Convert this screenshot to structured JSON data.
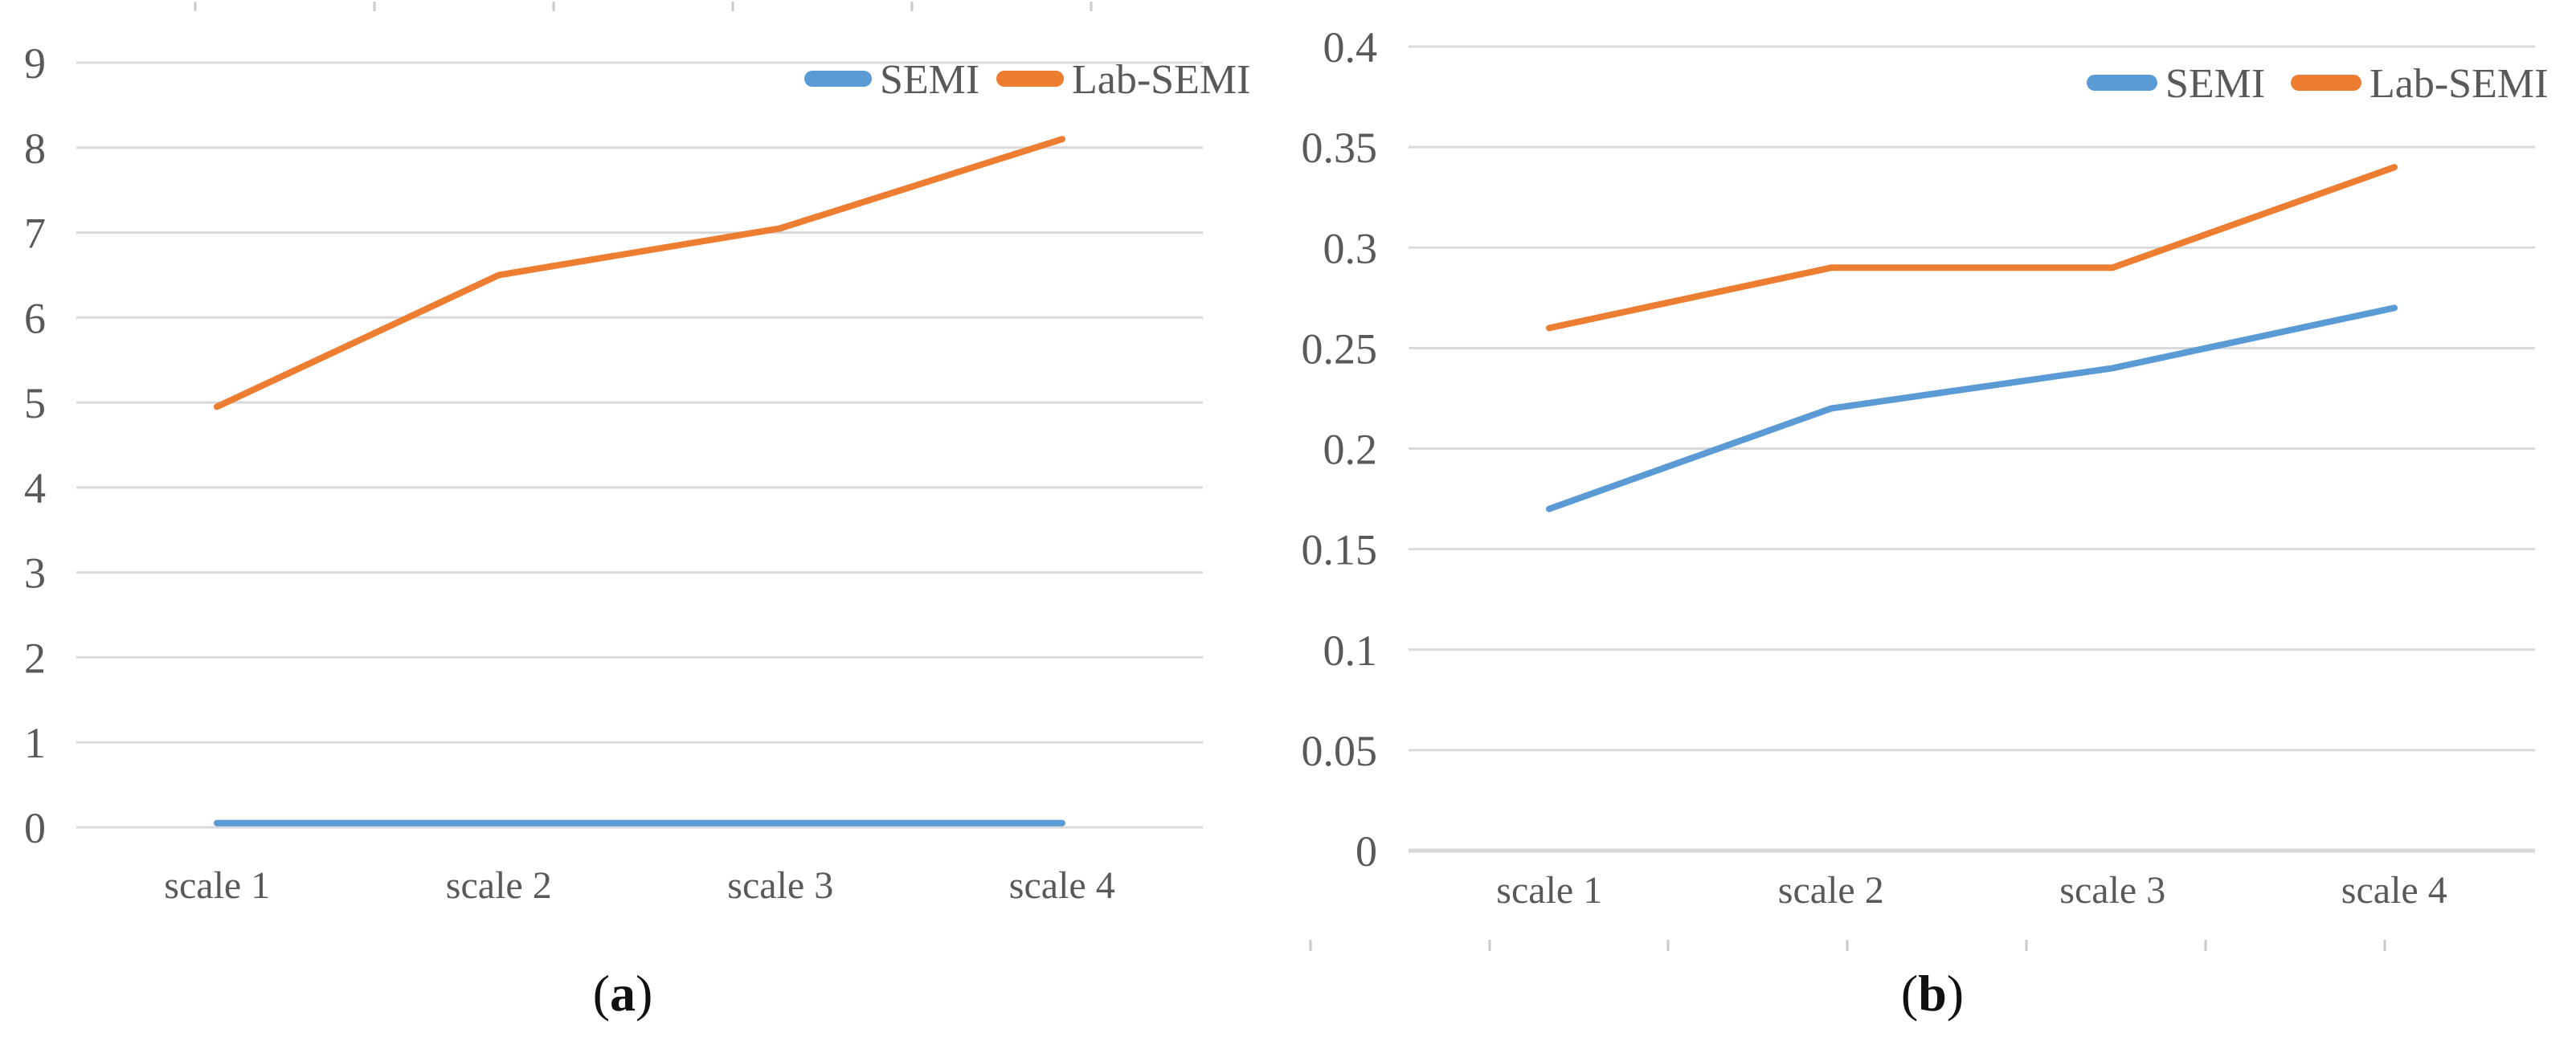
{
  "figure": {
    "captions": {
      "a": {
        "open": "(",
        "letter": "a",
        "close": ")"
      },
      "b": {
        "open": "(",
        "letter": "b",
        "close": ")"
      }
    },
    "colors": {
      "semi": "#5B9BD5",
      "lab_semi": "#ED7D31",
      "gridline": "#D9D9D9",
      "axis_text": "#595959",
      "remnant_tick": "#C9C9C9"
    }
  },
  "chart_data": [
    {
      "id": "a",
      "type": "line",
      "title": "",
      "xlabel": "",
      "ylabel": "",
      "categories": [
        "scale 1",
        "scale 2",
        "scale 3",
        "scale 4"
      ],
      "series": [
        {
          "name": "SEMI",
          "color": "#5B9BD5",
          "values": [
            0.05,
            0.05,
            0.05,
            0.05
          ]
        },
        {
          "name": "Lab-SEMI",
          "color": "#ED7D31",
          "values": [
            4.95,
            6.5,
            7.05,
            8.1
          ]
        }
      ],
      "ylim": [
        0,
        9
      ],
      "yticks": [
        0,
        1,
        2,
        3,
        4,
        5,
        6,
        7,
        8,
        9
      ],
      "ytick_labels": [
        "0",
        "1",
        "2",
        "3",
        "4",
        "5",
        "6",
        "7",
        "8",
        "9"
      ],
      "grid": true,
      "legend": [
        "SEMI",
        "Lab-SEMI"
      ],
      "legend_position": "top-right-inside"
    },
    {
      "id": "b",
      "type": "line",
      "title": "",
      "xlabel": "",
      "ylabel": "",
      "categories": [
        "scale 1",
        "scale 2",
        "scale 3",
        "scale 4"
      ],
      "series": [
        {
          "name": "SEMI",
          "color": "#5B9BD5",
          "values": [
            0.17,
            0.22,
            0.24,
            0.27
          ]
        },
        {
          "name": "Lab-SEMI",
          "color": "#ED7D31",
          "values": [
            0.26,
            0.29,
            0.29,
            0.34
          ]
        }
      ],
      "ylim": [
        0,
        0.4
      ],
      "yticks": [
        0,
        0.05,
        0.1,
        0.15,
        0.2,
        0.25,
        0.3,
        0.35,
        0.4
      ],
      "ytick_labels": [
        "0",
        "0.05",
        "0.1",
        "0.15",
        "0.2",
        "0.25",
        "0.3",
        "0.35",
        "0.4"
      ],
      "grid": true,
      "legend": [
        "SEMI",
        "Lab-SEMI"
      ],
      "legend_position": "top-right-inside"
    }
  ]
}
